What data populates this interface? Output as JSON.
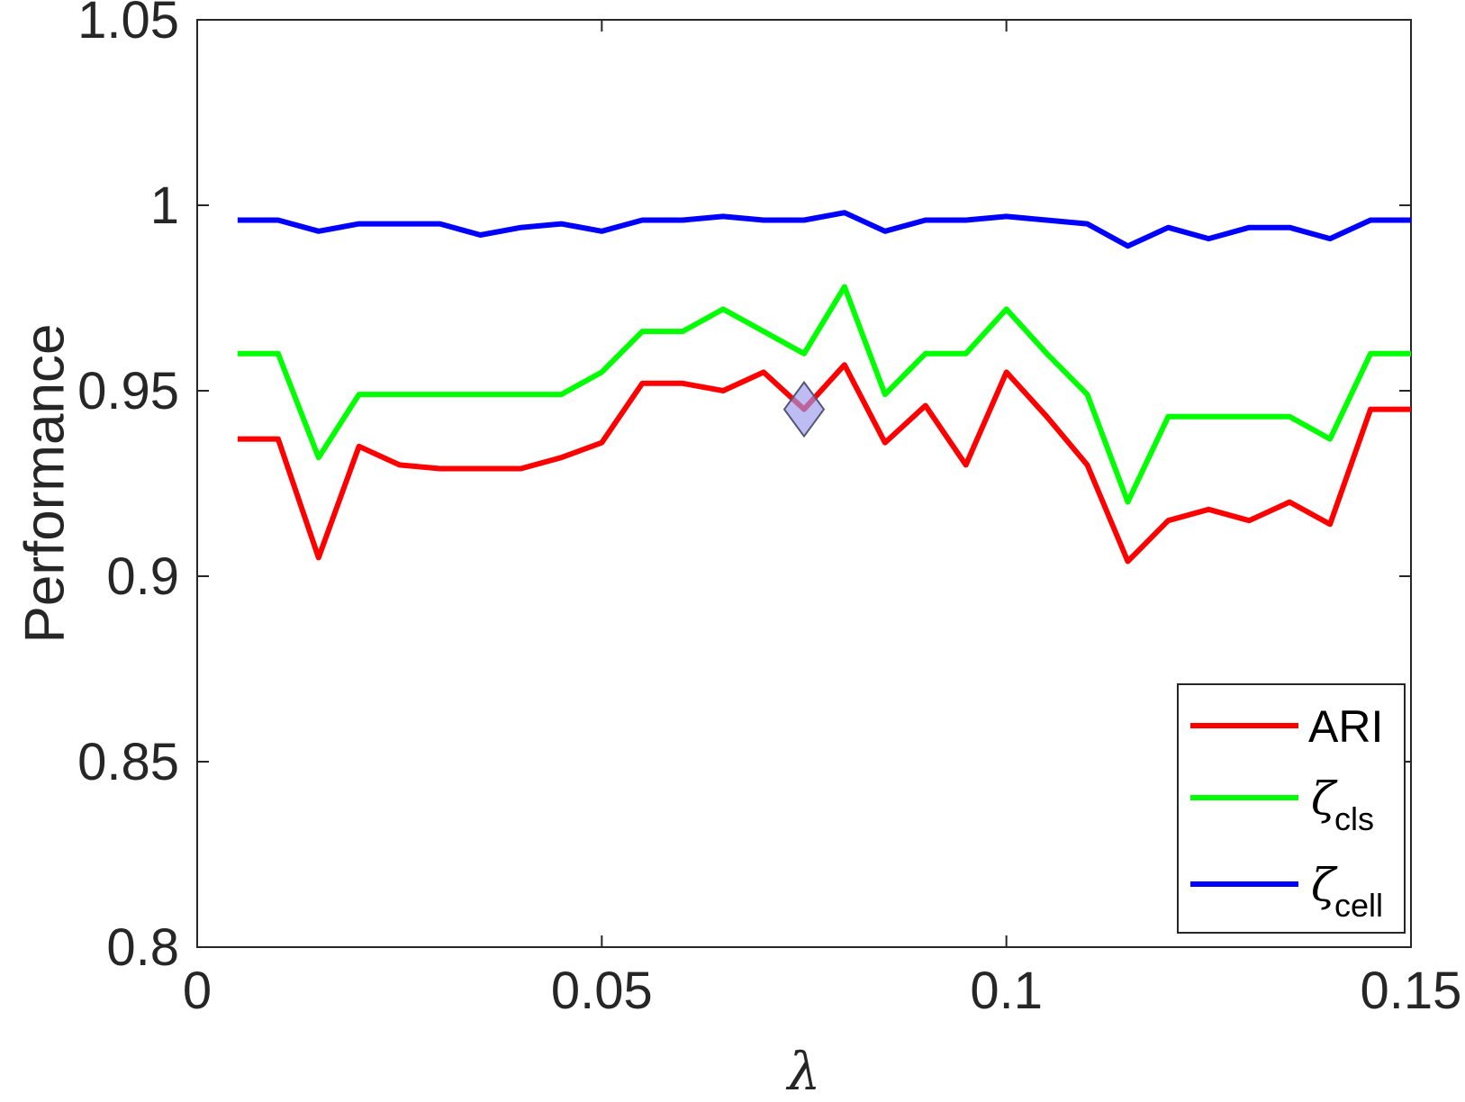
{
  "chart_data": {
    "type": "line",
    "xlabel": "λ",
    "ylabel": "Performance",
    "xlim": [
      0,
      0.15
    ],
    "ylim": [
      0.8,
      1.05
    ],
    "xticks": [
      0,
      0.05,
      0.1,
      0.15
    ],
    "xtick_labels": [
      "0",
      "0.05",
      "0.1",
      "0.15"
    ],
    "yticks": [
      0.8,
      0.85,
      0.9,
      0.95,
      1,
      1.05
    ],
    "ytick_labels": [
      "0.8",
      "0.85",
      "0.9",
      "0.95",
      "1",
      "1.05"
    ],
    "grid": false,
    "legend_position": "bottom-right",
    "x": [
      0.005,
      0.01,
      0.015,
      0.02,
      0.025,
      0.03,
      0.035,
      0.04,
      0.045,
      0.05,
      0.055,
      0.06,
      0.065,
      0.07,
      0.075,
      0.08,
      0.085,
      0.09,
      0.095,
      0.1,
      0.105,
      0.11,
      0.115,
      0.12,
      0.125,
      0.13,
      0.135,
      0.14,
      0.145,
      0.15
    ],
    "series": [
      {
        "name": "ARI",
        "color": "#ff0000",
        "values": [
          0.937,
          0.937,
          0.905,
          0.935,
          0.93,
          0.929,
          0.929,
          0.929,
          0.932,
          0.936,
          0.952,
          0.952,
          0.95,
          0.955,
          0.945,
          0.957,
          0.936,
          0.946,
          0.93,
          0.955,
          0.943,
          0.93,
          0.904,
          0.915,
          0.918,
          0.915,
          0.92,
          0.914,
          0.945,
          0.945
        ]
      },
      {
        "name": "ζ",
        "subscript": "cls",
        "color": "#00ff00",
        "values": [
          0.96,
          0.96,
          0.932,
          0.949,
          0.949,
          0.949,
          0.949,
          0.949,
          0.949,
          0.955,
          0.966,
          0.966,
          0.972,
          0.966,
          0.96,
          0.978,
          0.949,
          0.96,
          0.96,
          0.972,
          0.96,
          0.949,
          0.92,
          0.943,
          0.943,
          0.943,
          0.943,
          0.937,
          0.96,
          0.96
        ]
      },
      {
        "name": "ζ",
        "subscript": "cell",
        "color": "#0000ff",
        "values": [
          0.996,
          0.996,
          0.993,
          0.995,
          0.995,
          0.995,
          0.992,
          0.994,
          0.995,
          0.993,
          0.996,
          0.996,
          0.997,
          0.996,
          0.996,
          0.998,
          0.993,
          0.996,
          0.996,
          0.997,
          0.996,
          0.995,
          0.989,
          0.994,
          0.991,
          0.994,
          0.994,
          0.991,
          0.996,
          0.996
        ]
      }
    ],
    "marker": {
      "shape": "diamond",
      "x": 0.075,
      "y": 0.945,
      "color": "#9999ee"
    }
  }
}
